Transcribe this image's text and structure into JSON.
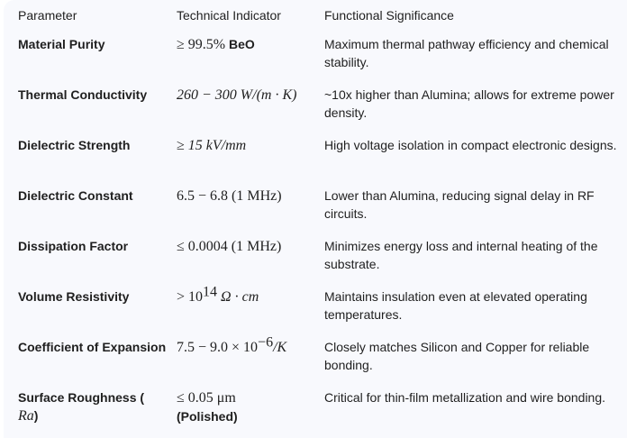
{
  "headers": [
    "Parameter",
    "Technical Indicator",
    "Functional Significance"
  ],
  "rows": [
    {
      "parameter": "Material Purity",
      "value_math": "≥ 99.5%",
      "value_text": " BeO",
      "significance": "Maximum thermal pathway efficiency and chemical stability."
    },
    {
      "parameter": "Thermal Conductivity",
      "value_math": "260 − 300 W/(m · K)",
      "value_text": "",
      "significance": "~10x higher than Alumina; allows for extreme power density."
    },
    {
      "parameter": "Dielectric Strength",
      "value_math": "≥ 15 kV/mm",
      "value_text": "",
      "significance": "High voltage isolation in compact electronic designs."
    },
    {
      "parameter": "Dielectric Constant",
      "value_math": "6.5 − 6.8 (1 MHz)",
      "value_text": "",
      "significance": "Lower than Alumina, reducing signal delay in RF circuits."
    },
    {
      "parameter": "Dissipation Factor",
      "value_math": "≤ 0.0004 (1 MHz)",
      "value_text": "",
      "significance": "Minimizes energy loss and internal heating of the substrate."
    },
    {
      "parameter": "Volume Resistivity",
      "value_math": "> 10",
      "value_sup": "14",
      "value_math2": " Ω · cm",
      "value_text": "",
      "significance": "Maintains insulation even at elevated operating temperatures."
    },
    {
      "parameter": "Coefficient of Expansion",
      "value_math": "7.5 − 9.0 × 10",
      "value_sup": "−6",
      "value_math2": "/K",
      "value_text": "",
      "significance": "Closely matches Silicon and Copper for reliable bonding."
    },
    {
      "parameter": "Surface Roughness (",
      "parameter_math": "Ra",
      "parameter_end": ")",
      "value_math": "≤ 0.05 μm",
      "value_text": "(Polished)",
      "significance": "Critical for thin-film metallization and wire bonding."
    }
  ]
}
